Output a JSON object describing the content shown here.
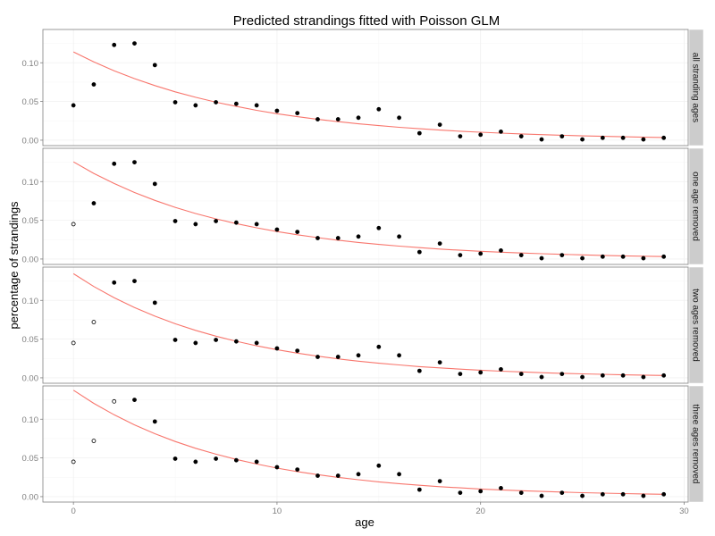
{
  "chart_data": {
    "type": "scatter",
    "title": "Predicted strandings fitted with Poisson GLM",
    "xlabel": "age",
    "ylabel": "percentage of strandings",
    "xlim": [
      -1.5,
      30.2
    ],
    "ylim": [
      -0.007,
      0.143
    ],
    "x_ticks": [
      0,
      10,
      20,
      30
    ],
    "x_tick_labels": [
      "0",
      "10",
      "20",
      "30"
    ],
    "y_ticks": [
      0,
      0.05,
      0.1
    ],
    "y_tick_labels": [
      "0.00",
      "0.05",
      "0.10"
    ],
    "grid": true,
    "observed_ages": [
      0,
      1,
      2,
      3,
      4,
      5,
      6,
      7,
      8,
      9,
      10,
      11,
      12,
      13,
      14,
      15,
      16,
      17,
      18,
      19,
      20,
      21,
      22,
      23,
      24,
      25,
      26,
      27,
      28,
      29
    ],
    "observed_values": [
      0.045,
      0.072,
      0.123,
      0.125,
      0.097,
      0.049,
      0.045,
      0.049,
      0.047,
      0.045,
      0.038,
      0.035,
      0.027,
      0.027,
      0.029,
      0.04,
      0.029,
      0.009,
      0.02,
      0.005,
      0.007,
      0.011,
      0.005,
      0.001,
      0.005,
      0.001,
      0.003,
      0.003,
      0.001,
      0.003
    ],
    "fitted_x": [
      0,
      1,
      2,
      3,
      4,
      5,
      6,
      7,
      8,
      9,
      10,
      11,
      12,
      13,
      14,
      15,
      16,
      17,
      18,
      19,
      20,
      21,
      22,
      23,
      24,
      25,
      26,
      27,
      28,
      29
    ],
    "panels": [
      {
        "strip": "all stranding ages",
        "removed_ages": [],
        "fitted_y": [
          0.114,
          0.1011,
          0.0896,
          0.0795,
          0.0705,
          0.0625,
          0.0554,
          0.0491,
          0.0436,
          0.0386,
          0.0342,
          0.0304,
          0.0269,
          0.0239,
          0.0212,
          0.0188,
          0.0166,
          0.0148,
          0.0131,
          0.0116,
          0.0103,
          0.0091,
          0.0081,
          0.0072,
          0.0064,
          0.0056,
          0.005,
          0.0044,
          0.0039,
          0.0035
        ]
      },
      {
        "strip": "one age removed",
        "removed_ages": [
          0
        ],
        "fitted_y": [
          0.1255,
          0.1106,
          0.0975,
          0.0859,
          0.0757,
          0.0667,
          0.0588,
          0.0518,
          0.0457,
          0.0403,
          0.0355,
          0.0313,
          0.0276,
          0.0243,
          0.0214,
          0.0189,
          0.0166,
          0.0147,
          0.0129,
          0.0114,
          0.01,
          0.0088,
          0.0078,
          0.0069,
          0.006,
          0.0053,
          0.0047,
          0.0041,
          0.0036,
          0.0032
        ]
      },
      {
        "strip": "two ages removed",
        "removed_ages": [
          0,
          1
        ],
        "fitted_y": [
          0.1345,
          0.118,
          0.1035,
          0.0908,
          0.0797,
          0.0699,
          0.0613,
          0.0538,
          0.0472,
          0.0414,
          0.0364,
          0.0319,
          0.028,
          0.0245,
          0.0215,
          0.0189,
          0.0166,
          0.0145,
          0.0128,
          0.0112,
          0.0098,
          0.0086,
          0.0076,
          0.0066,
          0.0058,
          0.0051,
          0.0045,
          0.0039,
          0.0035,
          0.003
        ]
      },
      {
        "strip": "three ages removed",
        "removed_ages": [
          0,
          1,
          2
        ],
        "fitted_y": [
          0.1375,
          0.1205,
          0.1057,
          0.0927,
          0.0813,
          0.0712,
          0.0625,
          0.0548,
          0.048,
          0.0421,
          0.0369,
          0.0324,
          0.0284,
          0.0249,
          0.0218,
          0.0191,
          0.0168,
          0.0147,
          0.0129,
          0.0113,
          0.0099,
          0.0087,
          0.0076,
          0.0067,
          0.0059,
          0.0051,
          0.0045,
          0.004,
          0.0035,
          0.003
        ]
      }
    ],
    "colors": {
      "fit_line": "#f8766d",
      "points": "#000000",
      "strip_bg": "#cccccc",
      "grid": "#f0f0f0",
      "panel_border": "#7f7f7f"
    }
  }
}
